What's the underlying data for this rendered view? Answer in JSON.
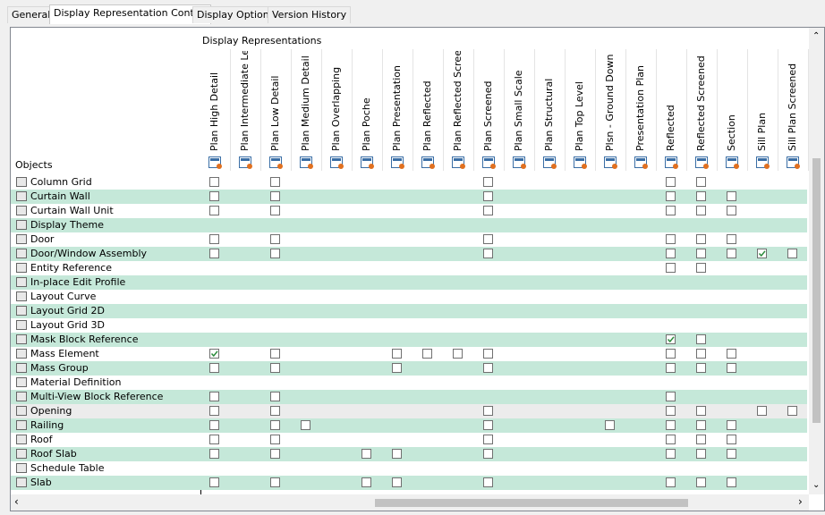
{
  "tabs": [
    "General",
    "Display Representation Control",
    "Display Options",
    "Version History"
  ],
  "active_tab": 1,
  "header": {
    "group_label": "Display Representations",
    "objects_label": "Objects"
  },
  "columns": [
    "Plan High Detail",
    "Plan Intermediate Level",
    "Plan Low Detail",
    "Plan Medium Detail",
    "Plan Overlapping",
    "Plan Poche",
    "Plan Presentation",
    "Plan Reflected",
    "Plan Reflected Scree...",
    "Plan Screened",
    "Plan Small Scale",
    "Plan Structural",
    "Plan Top Level",
    "Plsn - Ground Down",
    "Presentation Plan",
    "Reflected",
    "Reflected Screened",
    "Section",
    "Sill Plan",
    "Sill Plan Screened"
  ],
  "selected_row": 16,
  "rows": [
    {
      "label": "Column Grid",
      "cells": [
        false,
        null,
        false,
        null,
        null,
        null,
        null,
        null,
        null,
        false,
        null,
        null,
        null,
        null,
        null,
        false,
        false,
        null,
        null,
        null
      ]
    },
    {
      "label": "Curtain Wall",
      "cells": [
        false,
        null,
        false,
        null,
        null,
        null,
        null,
        null,
        null,
        false,
        null,
        null,
        null,
        null,
        null,
        false,
        false,
        false,
        null,
        null
      ]
    },
    {
      "label": "Curtain Wall Unit",
      "cells": [
        false,
        null,
        false,
        null,
        null,
        null,
        null,
        null,
        null,
        false,
        null,
        null,
        null,
        null,
        null,
        false,
        false,
        false,
        null,
        null
      ]
    },
    {
      "label": "Display Theme",
      "cells": [
        null,
        null,
        null,
        null,
        null,
        null,
        null,
        null,
        null,
        null,
        null,
        null,
        null,
        null,
        null,
        null,
        null,
        null,
        null,
        null
      ]
    },
    {
      "label": "Door",
      "cells": [
        false,
        null,
        false,
        null,
        null,
        null,
        null,
        null,
        null,
        false,
        null,
        null,
        null,
        null,
        null,
        false,
        false,
        false,
        null,
        null
      ]
    },
    {
      "label": "Door/Window Assembly",
      "cells": [
        false,
        null,
        false,
        null,
        null,
        null,
        null,
        null,
        null,
        false,
        null,
        null,
        null,
        null,
        null,
        false,
        false,
        false,
        true,
        false
      ]
    },
    {
      "label": "Entity Reference",
      "cells": [
        null,
        null,
        null,
        null,
        null,
        null,
        null,
        null,
        null,
        null,
        null,
        null,
        null,
        null,
        null,
        false,
        false,
        null,
        null,
        null
      ]
    },
    {
      "label": "In-place Edit Profile",
      "cells": [
        null,
        null,
        null,
        null,
        null,
        null,
        null,
        null,
        null,
        null,
        null,
        null,
        null,
        null,
        null,
        null,
        null,
        null,
        null,
        null
      ]
    },
    {
      "label": "Layout Curve",
      "cells": [
        null,
        null,
        null,
        null,
        null,
        null,
        null,
        null,
        null,
        null,
        null,
        null,
        null,
        null,
        null,
        null,
        null,
        null,
        null,
        null
      ]
    },
    {
      "label": "Layout Grid 2D",
      "cells": [
        null,
        null,
        null,
        null,
        null,
        null,
        null,
        null,
        null,
        null,
        null,
        null,
        null,
        null,
        null,
        null,
        null,
        null,
        null,
        null
      ]
    },
    {
      "label": "Layout Grid 3D",
      "cells": [
        null,
        null,
        null,
        null,
        null,
        null,
        null,
        null,
        null,
        null,
        null,
        null,
        null,
        null,
        null,
        null,
        null,
        null,
        null,
        null
      ]
    },
    {
      "label": "Mask Block Reference",
      "cells": [
        null,
        null,
        null,
        null,
        null,
        null,
        null,
        null,
        null,
        null,
        null,
        null,
        null,
        null,
        null,
        true,
        false,
        null,
        null,
        null
      ]
    },
    {
      "label": "Mass Element",
      "cells": [
        true,
        null,
        false,
        null,
        null,
        null,
        false,
        false,
        false,
        false,
        null,
        null,
        null,
        null,
        null,
        false,
        false,
        false,
        null,
        null
      ]
    },
    {
      "label": "Mass Group",
      "cells": [
        false,
        null,
        false,
        null,
        null,
        null,
        false,
        null,
        null,
        false,
        null,
        null,
        null,
        null,
        null,
        false,
        false,
        false,
        null,
        null
      ]
    },
    {
      "label": "Material Definition",
      "cells": [
        null,
        null,
        null,
        null,
        null,
        null,
        null,
        null,
        null,
        null,
        null,
        null,
        null,
        null,
        null,
        null,
        null,
        null,
        null,
        null
      ]
    },
    {
      "label": "Multi-View Block Reference",
      "cells": [
        false,
        null,
        false,
        null,
        null,
        null,
        null,
        null,
        null,
        null,
        null,
        null,
        null,
        null,
        null,
        false,
        null,
        null,
        null,
        null
      ]
    },
    {
      "label": "Opening",
      "cells": [
        false,
        null,
        false,
        null,
        null,
        null,
        null,
        null,
        null,
        false,
        null,
        null,
        null,
        null,
        null,
        false,
        false,
        null,
        false,
        false
      ]
    },
    {
      "label": "Railing",
      "cells": [
        false,
        null,
        false,
        false,
        null,
        null,
        null,
        null,
        null,
        false,
        null,
        null,
        null,
        false,
        null,
        false,
        false,
        false,
        null,
        null
      ]
    },
    {
      "label": "Roof",
      "cells": [
        false,
        null,
        false,
        null,
        null,
        null,
        null,
        null,
        null,
        false,
        null,
        null,
        null,
        null,
        null,
        false,
        false,
        false,
        null,
        null
      ]
    },
    {
      "label": "Roof Slab",
      "cells": [
        false,
        null,
        false,
        null,
        null,
        false,
        false,
        null,
        null,
        false,
        null,
        null,
        null,
        null,
        null,
        false,
        false,
        false,
        null,
        null
      ]
    },
    {
      "label": "Schedule Table",
      "cells": [
        null,
        null,
        null,
        null,
        null,
        null,
        null,
        null,
        null,
        null,
        null,
        null,
        null,
        null,
        null,
        null,
        null,
        null,
        null,
        null
      ]
    },
    {
      "label": "Slab",
      "cells": [
        false,
        null,
        false,
        null,
        null,
        false,
        false,
        null,
        null,
        false,
        null,
        null,
        null,
        null,
        null,
        false,
        false,
        false,
        null,
        null
      ]
    }
  ]
}
